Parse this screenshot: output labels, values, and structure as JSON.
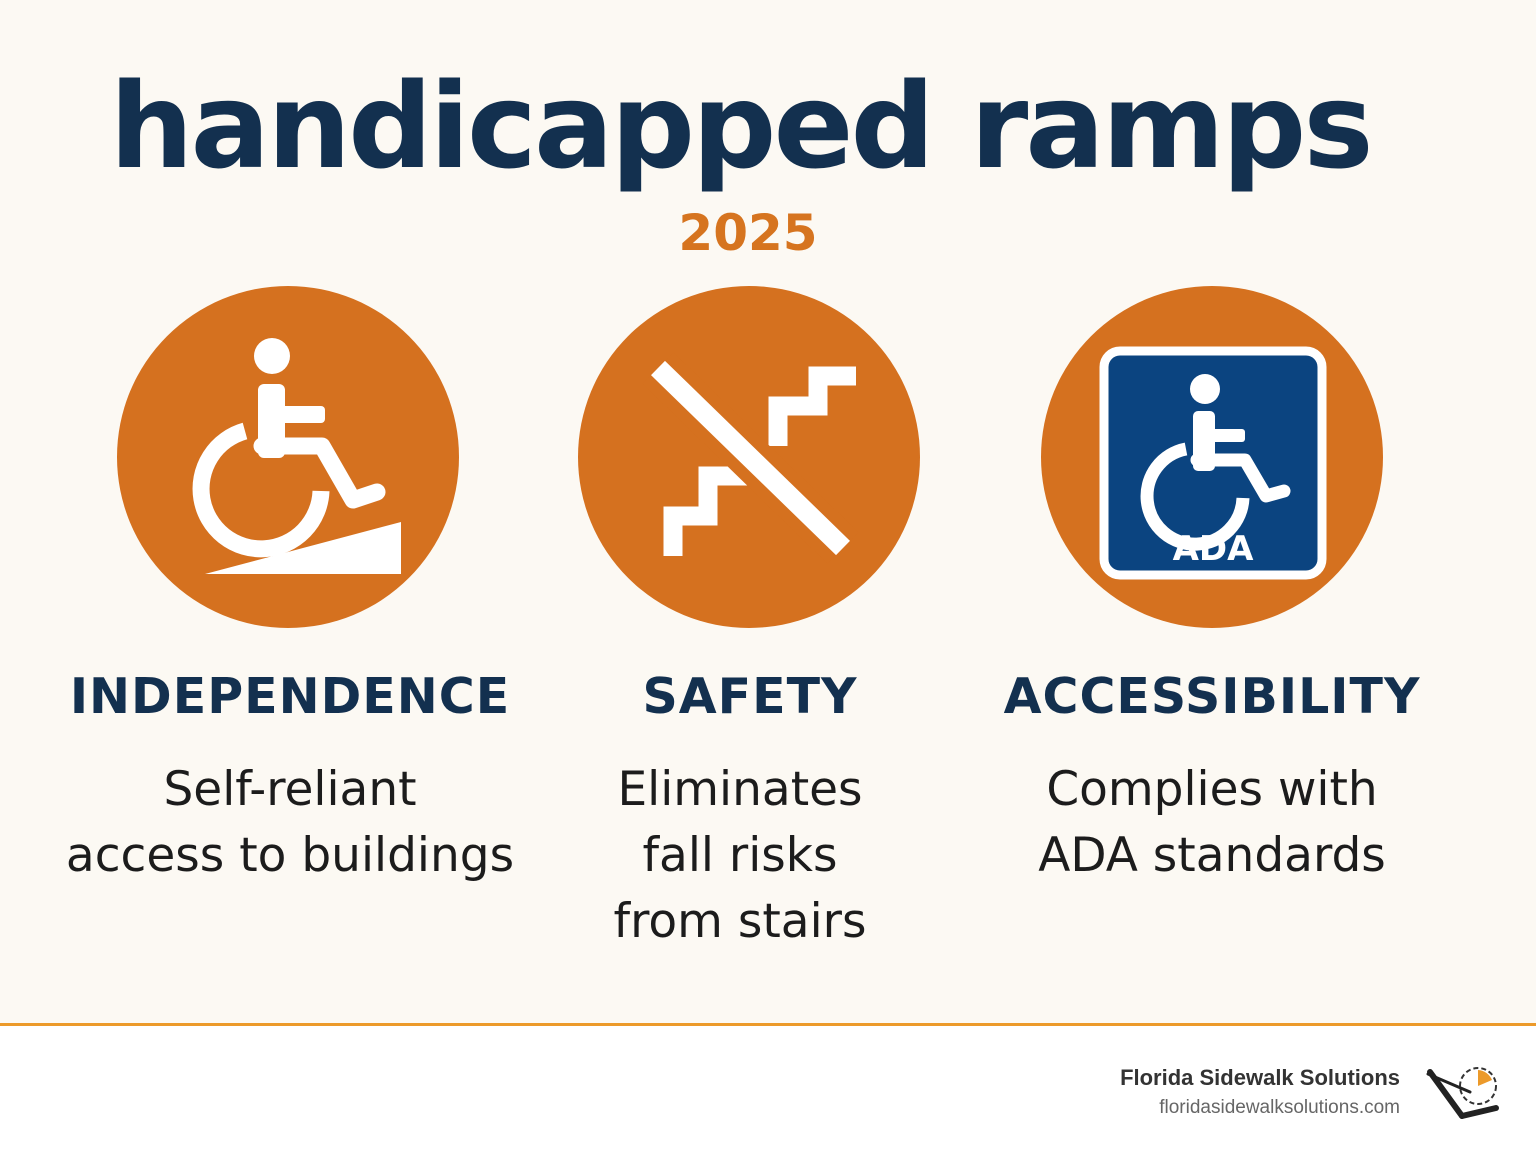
{
  "title": "handicapped ramps",
  "year": "2025",
  "colors": {
    "navy": "#13304f",
    "orange": "#d5711f",
    "ada_blue": "#0b4480",
    "footer_rule": "#ec9a2a"
  },
  "benefits": [
    {
      "icon": "wheelchair-ramp-icon",
      "heading": "INDEPENDENCE",
      "description": "Self-reliant\naccess to buildings"
    },
    {
      "icon": "no-stairs-icon",
      "heading": "SAFETY",
      "description": "Eliminates\nfall risks\nfrom stairs"
    },
    {
      "icon": "ada-sign-icon",
      "heading": "ACCESSIBILITY",
      "description": "Complies with\nADA standards"
    }
  ],
  "ada_sign_text": "ADA",
  "footer": {
    "company": "Florida Sidewalk Solutions",
    "url": "floridasidewalksolutions.com",
    "logo_icon": "sidewalk-logo-icon"
  }
}
